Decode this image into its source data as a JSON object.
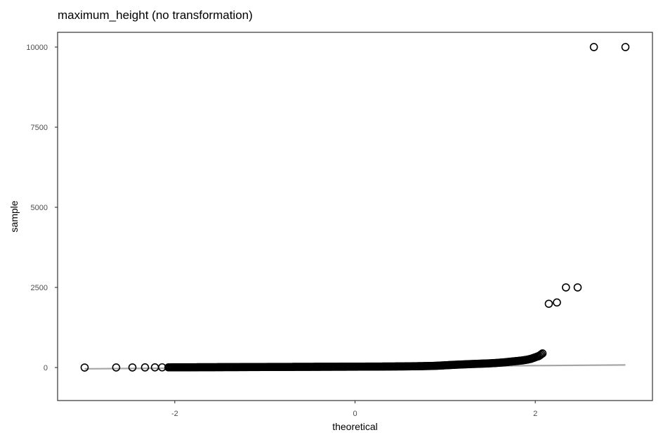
{
  "chart_data": {
    "type": "scatter",
    "title": "maximum_height (no transformation)",
    "xlabel": "theoretical",
    "ylabel": "sample",
    "xlim": [
      -3.3,
      3.3
    ],
    "ylim": [
      -1030,
      10460
    ],
    "x_ticks": [
      {
        "value": -2,
        "label": "-2"
      },
      {
        "value": 0,
        "label": "0"
      },
      {
        "value": 2,
        "label": "2"
      }
    ],
    "y_ticks": [
      {
        "value": 0,
        "label": "0"
      },
      {
        "value": 2500,
        "label": "2500"
      },
      {
        "value": 5000,
        "label": "5000"
      },
      {
        "value": 7500,
        "label": "7500"
      },
      {
        "value": 10000,
        "label": "10000"
      }
    ],
    "grid": false,
    "reference_line": {
      "x": [
        -3.0,
        3.0
      ],
      "y": [
        -40,
        80
      ],
      "color": "#a6a6a6"
    },
    "notable_points": [
      {
        "x": -3.0,
        "y": 0
      },
      {
        "x": -2.65,
        "y": 2
      },
      {
        "x": -2.47,
        "y": 3
      },
      {
        "x": -2.33,
        "y": 4
      },
      {
        "x": -2.22,
        "y": 5
      },
      {
        "x": 2.08,
        "y": 440
      },
      {
        "x": 2.15,
        "y": 1990
      },
      {
        "x": 2.24,
        "y": 2030
      },
      {
        "x": 2.34,
        "y": 2500
      },
      {
        "x": 2.47,
        "y": 2500
      },
      {
        "x": 2.65,
        "y": 10000
      },
      {
        "x": 3.0,
        "y": 10000
      }
    ],
    "series": [
      {
        "points": [
          [
            -3.0,
            0
          ],
          [
            -2.65,
            2
          ],
          [
            -2.47,
            3
          ],
          [
            -2.33,
            4
          ],
          [
            -2.22,
            5
          ],
          [
            -2.14,
            6
          ],
          [
            -2.07,
            6
          ],
          [
            -2.0,
            7
          ],
          [
            -1.94,
            7
          ],
          [
            -1.89,
            8
          ],
          [
            -1.84,
            8
          ],
          [
            -1.8,
            9
          ],
          [
            -1.76,
            9
          ],
          [
            -1.72,
            10
          ],
          [
            -1.68,
            10
          ],
          [
            -1.64,
            10
          ],
          [
            -1.6,
            11
          ],
          [
            -1.56,
            11
          ],
          [
            -1.52,
            12
          ],
          [
            -1.48,
            12
          ],
          [
            -1.44,
            13
          ],
          [
            -1.4,
            13
          ],
          [
            -1.35,
            14
          ],
          [
            -1.3,
            14
          ],
          [
            -1.25,
            15
          ],
          [
            -1.2,
            15
          ],
          [
            -1.15,
            16
          ],
          [
            -1.1,
            16
          ],
          [
            -1.05,
            17
          ],
          [
            -1.0,
            17
          ],
          [
            -0.95,
            18
          ],
          [
            -0.9,
            18
          ],
          [
            -0.85,
            19
          ],
          [
            -0.8,
            19
          ],
          [
            -0.75,
            20
          ],
          [
            -0.7,
            20
          ],
          [
            -0.65,
            21
          ],
          [
            -0.6,
            21
          ],
          [
            -0.55,
            22
          ],
          [
            -0.5,
            22
          ],
          [
            -0.45,
            23
          ],
          [
            -0.4,
            23
          ],
          [
            -0.35,
            24
          ],
          [
            -0.3,
            24
          ],
          [
            -0.25,
            25
          ],
          [
            -0.2,
            25
          ],
          [
            -0.15,
            26
          ],
          [
            -0.1,
            26
          ],
          [
            -0.05,
            27
          ],
          [
            0.0,
            27
          ],
          [
            0.05,
            28
          ],
          [
            0.1,
            28
          ],
          [
            0.15,
            29
          ],
          [
            0.2,
            29
          ],
          [
            0.25,
            30
          ],
          [
            0.3,
            31
          ],
          [
            0.35,
            32
          ],
          [
            0.4,
            33
          ],
          [
            0.45,
            34
          ],
          [
            0.5,
            35
          ],
          [
            0.55,
            36
          ],
          [
            0.6,
            38
          ],
          [
            0.65,
            40
          ],
          [
            0.7,
            42
          ],
          [
            0.75,
            44
          ],
          [
            0.8,
            47
          ],
          [
            0.85,
            50
          ],
          [
            0.9,
            55
          ],
          [
            0.95,
            62
          ],
          [
            1.0,
            70
          ],
          [
            1.05,
            78
          ],
          [
            1.1,
            85
          ],
          [
            1.15,
            92
          ],
          [
            1.2,
            98
          ],
          [
            1.25,
            104
          ],
          [
            1.3,
            110
          ],
          [
            1.35,
            115
          ],
          [
            1.4,
            120
          ],
          [
            1.45,
            126
          ],
          [
            1.5,
            132
          ],
          [
            1.55,
            140
          ],
          [
            1.6,
            150
          ],
          [
            1.65,
            160
          ],
          [
            1.7,
            175
          ],
          [
            1.75,
            190
          ],
          [
            1.8,
            205
          ],
          [
            1.85,
            220
          ],
          [
            1.9,
            240
          ],
          [
            1.95,
            270
          ],
          [
            2.0,
            320
          ],
          [
            2.04,
            360
          ],
          [
            2.08,
            440
          ],
          [
            2.15,
            1990
          ],
          [
            2.24,
            2030
          ],
          [
            2.34,
            2500
          ],
          [
            2.47,
            2500
          ],
          [
            2.65,
            10000
          ],
          [
            3.0,
            10000
          ]
        ]
      }
    ]
  }
}
